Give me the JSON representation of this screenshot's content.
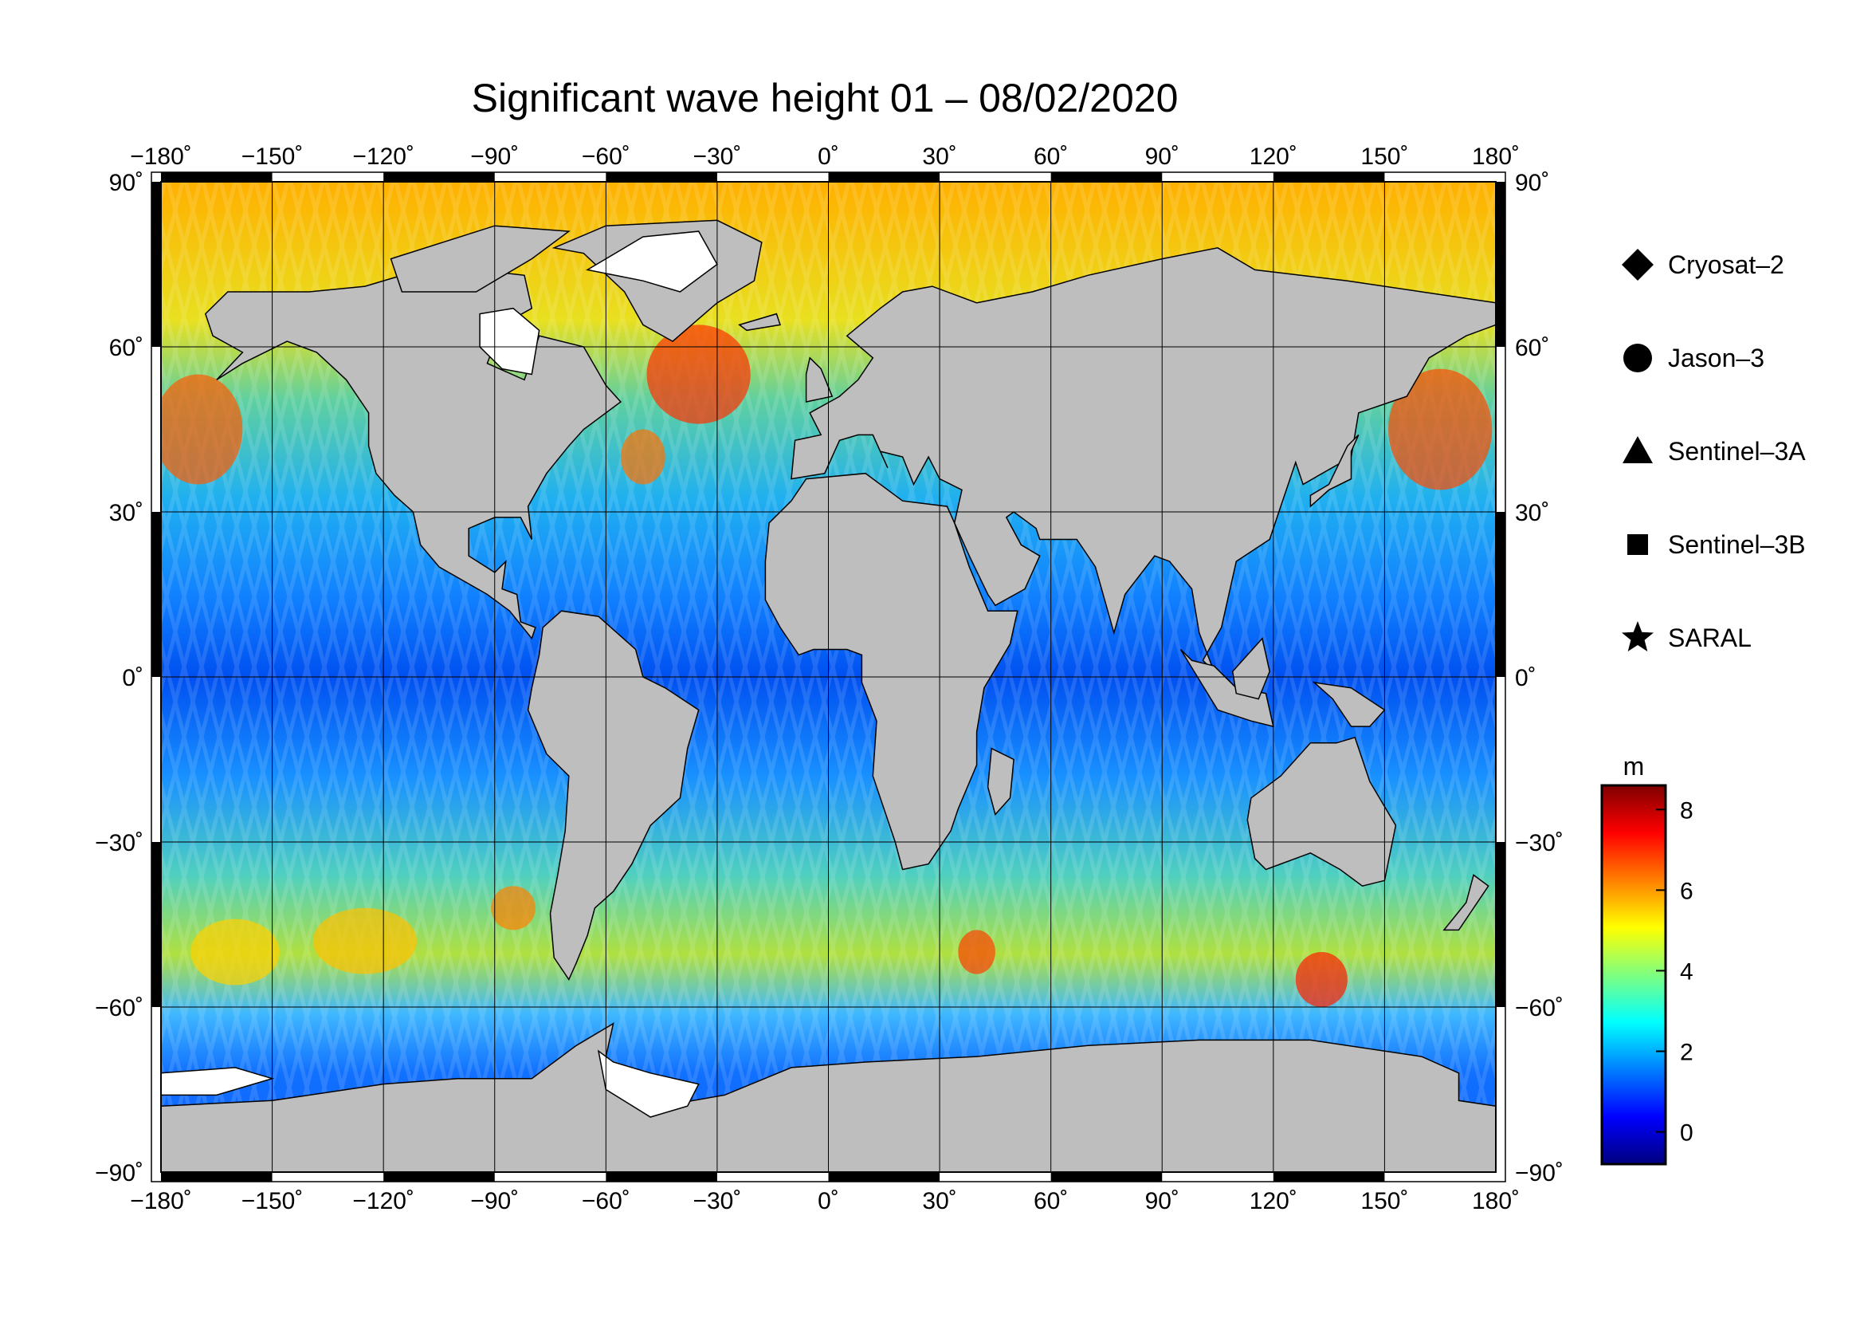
{
  "title": "Significant wave height 01 – 08/02/2020",
  "map": {
    "projection": "plate-carree",
    "lon_range": [
      -180,
      180
    ],
    "lat_range": [
      -90,
      90
    ],
    "lon_ticks": [
      -180,
      -150,
      -120,
      -90,
      -60,
      -30,
      0,
      30,
      60,
      90,
      120,
      150,
      180
    ],
    "lat_ticks": [
      -90,
      -60,
      -30,
      0,
      30,
      60,
      90
    ],
    "lon_tick_labels": [
      "−180˚",
      "−150˚",
      "−120˚",
      "−90˚",
      "−60˚",
      "−30˚",
      "0˚",
      "30˚",
      "60˚",
      "90˚",
      "120˚",
      "150˚",
      "180˚"
    ],
    "lat_tick_labels": [
      "−90˚",
      "−60˚",
      "−30˚",
      "0˚",
      "30˚",
      "60˚",
      "90˚"
    ],
    "grid": true,
    "land_color": "#bebebe",
    "ice_color": "#ffffff"
  },
  "legend": {
    "placement": "right",
    "items": [
      {
        "label": "Cryosat–2",
        "symbol": "diamond-icon"
      },
      {
        "label": "Jason–3",
        "symbol": "circle-icon"
      },
      {
        "label": "Sentinel–3A",
        "symbol": "triangle-icon"
      },
      {
        "label": "Sentinel–3B",
        "symbol": "square-icon"
      },
      {
        "label": "SARAL",
        "symbol": "star-icon"
      }
    ]
  },
  "colorbar": {
    "unit": "m",
    "range": [
      -0.8,
      8.6
    ],
    "ticks": [
      0,
      2,
      4,
      6,
      8
    ],
    "tick_labels": [
      "0",
      "2",
      "4",
      "6",
      "8"
    ],
    "colors": [
      "#00007f",
      "#0000ff",
      "#007fff",
      "#00ffff",
      "#7fff7f",
      "#ffff00",
      "#ff7f00",
      "#ff0000",
      "#7f0000"
    ]
  }
}
